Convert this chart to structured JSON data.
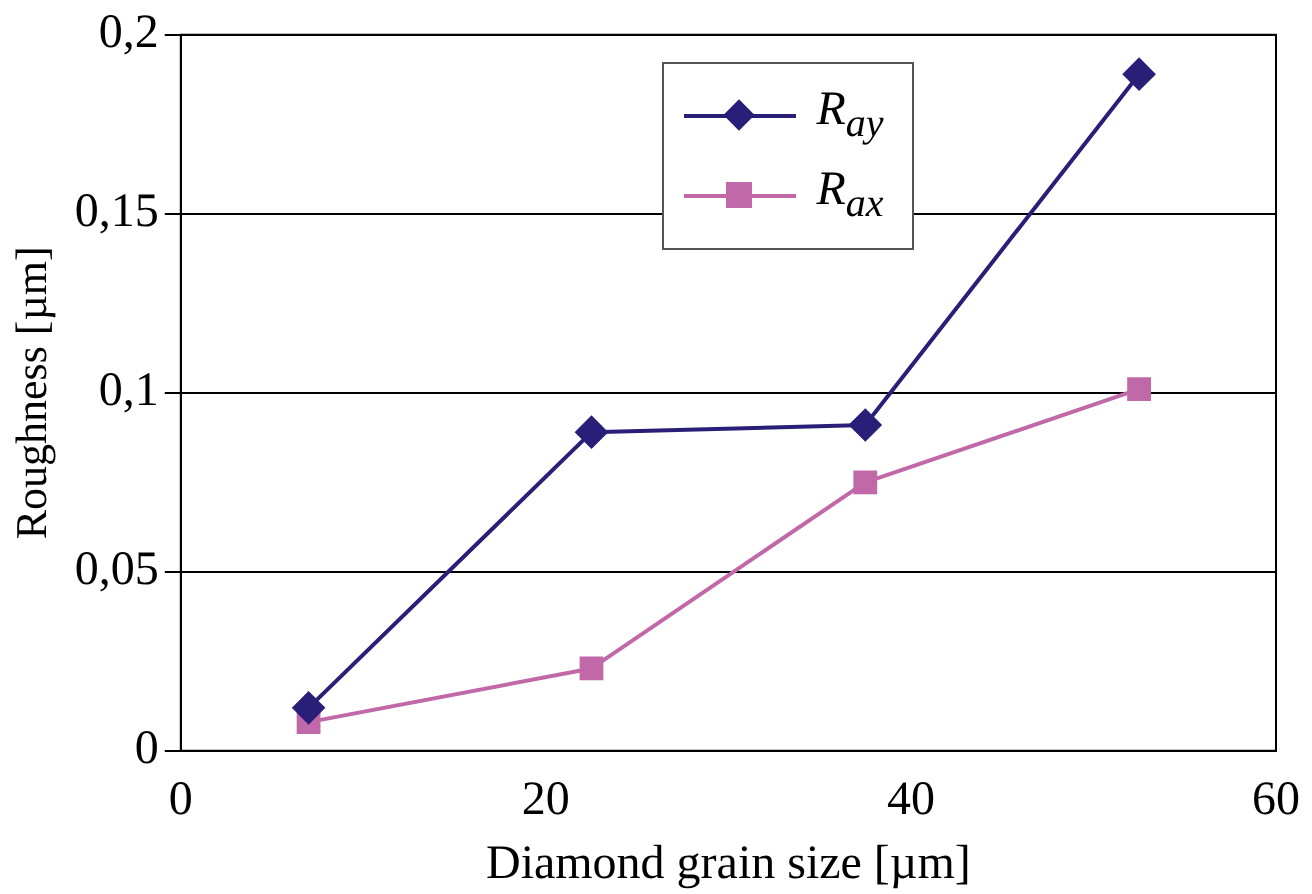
{
  "chart_data": {
    "type": "line",
    "xlabel": "Diamond grain size [µm]",
    "ylabel": "Roughness [µm]",
    "x": [
      7,
      22.5,
      37.5,
      52.5
    ],
    "series": [
      {
        "name": "R$_{ay}$",
        "color": "#2a1f78",
        "marker": "diamond",
        "values": [
          0.012,
          0.089,
          0.091,
          0.189
        ]
      },
      {
        "name": "R$_{ax}$",
        "color": "#c068a8",
        "marker": "square",
        "values": [
          0.008,
          0.023,
          0.075,
          0.101
        ]
      }
    ],
    "xlim": [
      0,
      60
    ],
    "xticks": [
      0,
      20,
      40,
      60
    ],
    "ylim": [
      0,
      0.2
    ],
    "yticks": [
      {
        "value": 0,
        "label": "0"
      },
      {
        "value": 0.05,
        "label": "0,05"
      },
      {
        "value": 0.1,
        "label": "0,1"
      },
      {
        "value": 0.15,
        "label": "0,15"
      },
      {
        "value": 0.2,
        "label": "0,2"
      }
    ],
    "grid": "y",
    "legend": "top",
    "line_style": "solid"
  }
}
